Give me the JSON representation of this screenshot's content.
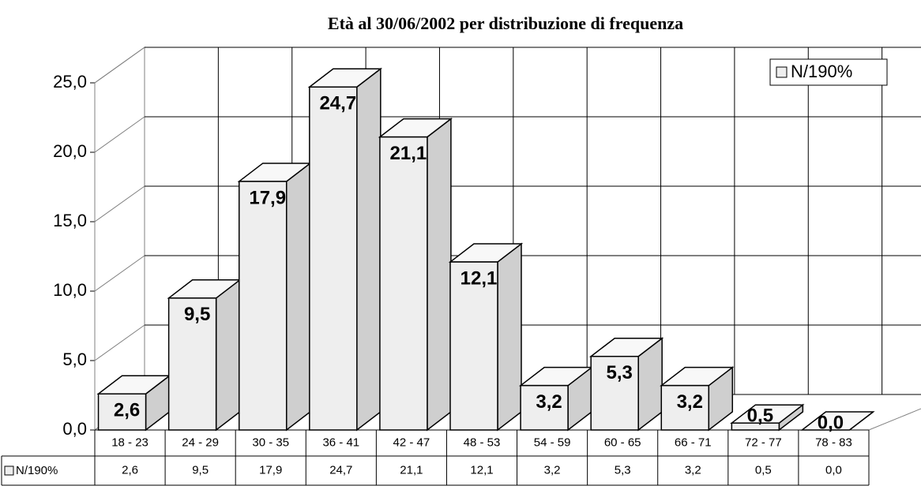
{
  "chart_data": {
    "type": "bar",
    "title": "Età al 30/06/2002 per distribuzione di frequenza",
    "categories": [
      "18 - 23",
      "24 - 29",
      "30 - 35",
      "36 - 41",
      "42 - 47",
      "48 - 53",
      "54 - 59",
      "60 - 65",
      "66 - 71",
      "72 - 77",
      "78 - 83"
    ],
    "series": [
      {
        "name": "N/190%",
        "color": "#eeeeee",
        "values": [
          2.6,
          9.5,
          17.9,
          24.7,
          21.1,
          12.1,
          3.2,
          5.3,
          3.2,
          0.5,
          0.0
        ],
        "value_labels": [
          "2,6",
          "9,5",
          "17,9",
          "24,7",
          "21,1",
          "12,1",
          "3,2",
          "5,3",
          "3,2",
          "0,5",
          "0,0"
        ]
      }
    ],
    "ylim": [
      0,
      25
    ],
    "yticks": [
      {
        "value": 0,
        "label": "0,0"
      },
      {
        "value": 5,
        "label": "5,0"
      },
      {
        "value": 10,
        "label": "10,0"
      },
      {
        "value": 15,
        "label": "15,0"
      },
      {
        "value": 20,
        "label": "20,0"
      },
      {
        "value": 25,
        "label": "25,0"
      }
    ],
    "grid": true,
    "legend": "upper right"
  }
}
